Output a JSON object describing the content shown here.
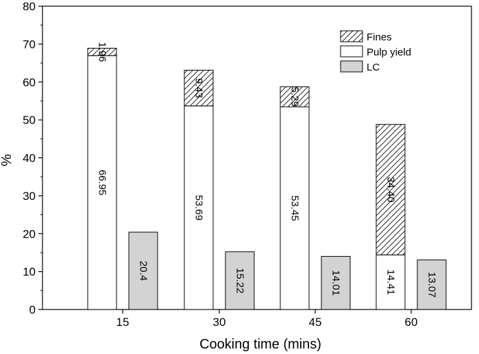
{
  "chart_data": {
    "type": "bar",
    "xlabel": "Cooking time (mins)",
    "ylabel": "%",
    "ylim": [
      0,
      80
    ],
    "yticks": [
      0,
      10,
      20,
      30,
      40,
      50,
      60,
      70,
      80
    ],
    "categories": [
      "15",
      "30",
      "45",
      "60"
    ],
    "series": [
      {
        "name": "Pulp yield",
        "group": "stacked",
        "pattern": "white",
        "values": [
          66.95,
          53.69,
          53.45,
          14.41
        ],
        "labels": [
          "66.95",
          "53.69",
          "53.45",
          "14.41"
        ]
      },
      {
        "name": "Fines",
        "group": "stacked",
        "pattern": "hatch",
        "values": [
          1.96,
          9.43,
          5.29,
          34.4
        ],
        "labels": [
          "1.96",
          "9.43",
          "5.29",
          "34.40"
        ]
      },
      {
        "name": "LC",
        "group": "separate",
        "pattern": "gray",
        "values": [
          20.4,
          15.22,
          14.01,
          13.07
        ],
        "labels": [
          "20.4",
          "15.22",
          "14.01",
          "13.07"
        ]
      }
    ],
    "legend": {
      "placement": "top-right",
      "order": [
        "Fines",
        "Pulp yield",
        "LC"
      ]
    },
    "colors": {
      "fill_white": "#ffffff",
      "fill_gray": "#d3d3d3",
      "stroke": "#000000"
    }
  }
}
